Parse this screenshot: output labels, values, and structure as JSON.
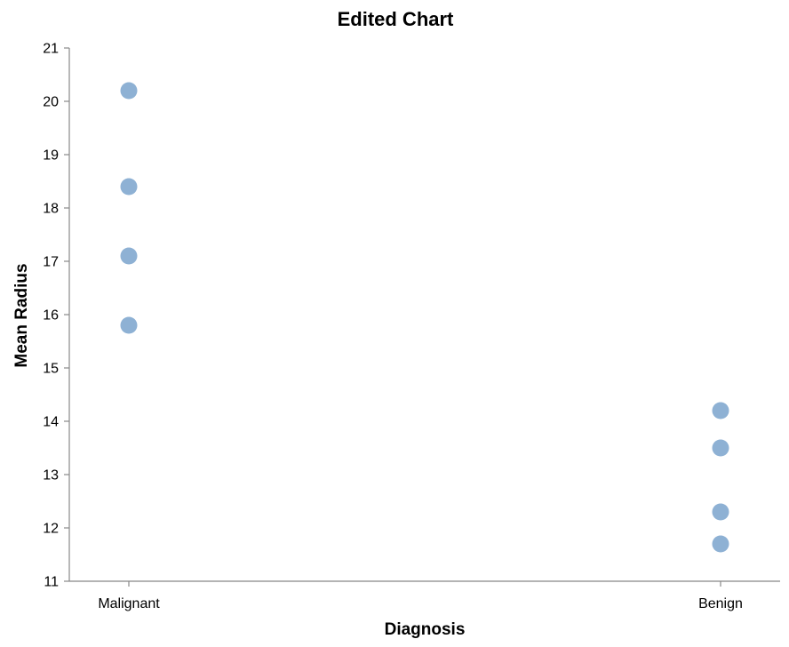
{
  "chart_data": {
    "type": "scatter",
    "title": "Edited Chart",
    "xlabel": "Diagnosis",
    "ylabel": "Mean Radius",
    "categories": [
      "Malignant",
      "Benign"
    ],
    "ylim": [
      11,
      21
    ],
    "yticks": [
      11,
      12,
      13,
      14,
      15,
      16,
      17,
      18,
      19,
      20,
      21
    ],
    "grid": false,
    "point_color": "#7aa3cc",
    "points": [
      {
        "x": "Malignant",
        "y": 20.2
      },
      {
        "x": "Malignant",
        "y": 18.4
      },
      {
        "x": "Malignant",
        "y": 17.1
      },
      {
        "x": "Malignant",
        "y": 15.8
      },
      {
        "x": "Benign",
        "y": 14.2
      },
      {
        "x": "Benign",
        "y": 13.5
      },
      {
        "x": "Benign",
        "y": 12.3
      },
      {
        "x": "Benign",
        "y": 11.7
      }
    ]
  }
}
